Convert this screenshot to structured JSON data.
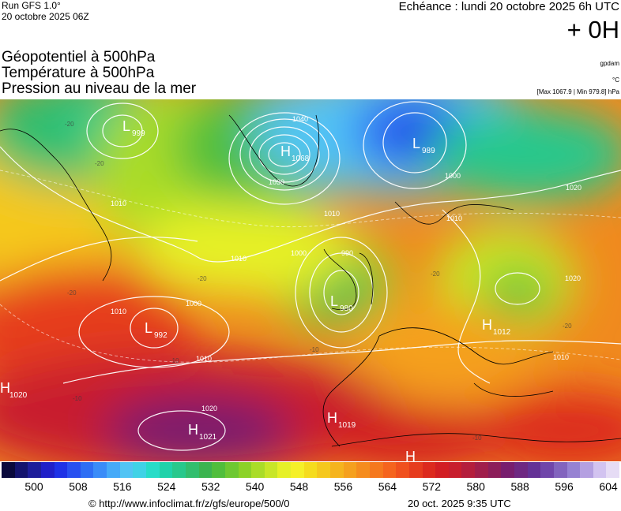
{
  "header": {
    "run_title": "Run GFS 1.0°",
    "run_date": "20 octobre 2025 06Z",
    "valid_time": "Echéance : lundi 20 octobre 2025 6h UTC",
    "lead_time": "+ 0H"
  },
  "layers": {
    "geopotential": "Géopotentiel à 500hPa",
    "temperature": "Température à 500hPa",
    "pressure": "Pression au niveau de la mer"
  },
  "units": {
    "geopotential": "gpdam",
    "temperature": "°C",
    "pressure": "[Max 1067.9 | Min 979.8] hPa"
  },
  "map": {
    "centers": [
      {
        "type": "L",
        "value": "999"
      },
      {
        "type": "H",
        "value": "1068"
      },
      {
        "type": "L",
        "value": "989"
      },
      {
        "type": "L",
        "value": "980"
      },
      {
        "type": "L",
        "value": "992"
      },
      {
        "type": "H",
        "value": "1020"
      },
      {
        "type": "H",
        "value": "1021"
      },
      {
        "type": "H",
        "value": "1019"
      },
      {
        "type": "H",
        "value": "1012"
      },
      {
        "type": "H",
        "value": ""
      }
    ],
    "isobar_labels": [
      "1040",
      "1030",
      "1000",
      "1010",
      "1020",
      "1010",
      "1000",
      "990",
      "1000",
      "1010",
      "1010",
      "1020",
      "1010",
      "1010",
      "1020",
      "1010"
    ],
    "temperature_labels": [
      "-20",
      "-20",
      "-20",
      "-10",
      "-10",
      "-20",
      "-10",
      "-10",
      "-20",
      "-20"
    ]
  },
  "colorbar": {
    "colors": [
      "#0a0a3c",
      "#14146e",
      "#1e1e9a",
      "#2020c8",
      "#1e32e6",
      "#2850f0",
      "#2e6ef4",
      "#3a8cf8",
      "#46aaf8",
      "#52c4f4",
      "#40d2e6",
      "#28dcc8",
      "#20d2aa",
      "#28c88c",
      "#32be6e",
      "#3cb450",
      "#50be3c",
      "#6ec832",
      "#8cd228",
      "#aadc28",
      "#c8e628",
      "#e6f028",
      "#f5f028",
      "#f5dc1e",
      "#f5c81e",
      "#f5b41e",
      "#f5a01e",
      "#f58c1e",
      "#f5781e",
      "#f5641e",
      "#f0501e",
      "#e63c1e",
      "#dc2a1e",
      "#d21e23",
      "#c81e2d",
      "#b41e3c",
      "#a01e4b",
      "#8c1e5a",
      "#781e6e",
      "#6e2882",
      "#643296",
      "#7046aa",
      "#8264be",
      "#9682d2",
      "#b4a0e1",
      "#d2c3f0",
      "#e6dcf5"
    ],
    "ticks": [
      "500",
      "508",
      "516",
      "524",
      "532",
      "540",
      "548",
      "556",
      "564",
      "572",
      "580",
      "588",
      "596",
      "604"
    ]
  },
  "footer": {
    "copyright": "© http://www.infoclimat.fr/z/gfs/europe/500/0",
    "generated": "20 oct. 2025  9:35 UTC"
  }
}
